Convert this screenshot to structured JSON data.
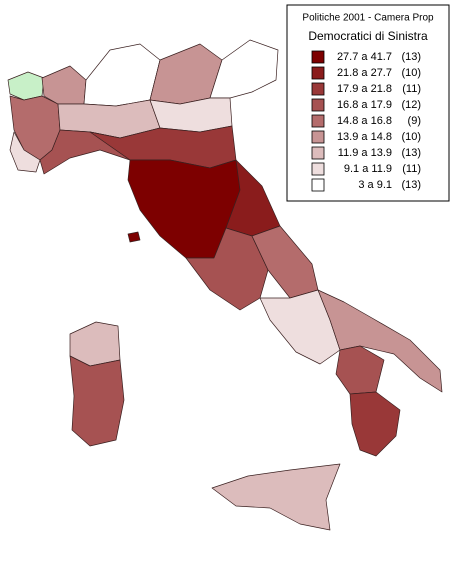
{
  "legend": {
    "title": "Politiche 2001 - Camera Prop",
    "subtitle": "Democratici di Sinistra",
    "items": [
      {
        "label": "27.7 a 41.7",
        "count": "(13)",
        "color": "#7d0000"
      },
      {
        "label": "21.8 a 27.7",
        "count": "(10)",
        "color": "#8a1c1c"
      },
      {
        "label": "17.9 a 21.8",
        "count": "(11)",
        "color": "#993838"
      },
      {
        "label": "16.8 a 17.9",
        "count": "(12)",
        "color": "#a65252"
      },
      {
        "label": "14.8 a 16.8",
        "count": "(9)",
        "color": "#b46c6c"
      },
      {
        "label": "13.9 a 14.8",
        "count": "(10)",
        "color": "#c79494"
      },
      {
        "label": "11.9 a 13.9",
        "count": "(13)",
        "color": "#dcbcbc"
      },
      {
        "label": "9.1 a 11.9",
        "count": "(11)",
        "color": "#eedede"
      },
      {
        "label": "3 a 9.1",
        "count": "(13)",
        "color": "#ffffff"
      }
    ]
  }
}
